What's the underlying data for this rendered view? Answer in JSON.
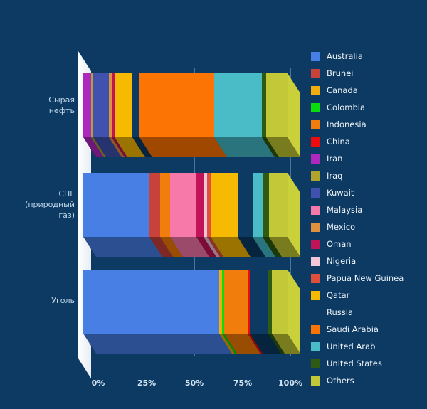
{
  "background_color": "#0d3a63",
  "chart_data": {
    "type": "bar",
    "variant": "3d-stacked-horizontal",
    "title": "",
    "xlabel": "",
    "ylabel": "",
    "unit": "%",
    "xlim": [
      0,
      100
    ],
    "grid": true,
    "legend_position": "right",
    "x_ticks": [
      "0%",
      "25%",
      "50%",
      "75%",
      "100%"
    ],
    "x_tick_values": [
      0,
      25,
      50,
      75,
      100
    ],
    "categories": [
      "Сырая нефть",
      "СПГ (природный газ)",
      "Уголь"
    ],
    "categories_display": [
      "Сырая\nнефть",
      "СПГ\n(природный\nгаз)",
      "Уголь"
    ],
    "series": [
      {
        "name": "Australia",
        "color": "#487fe5",
        "values": [
          0,
          32.5,
          66.5
        ]
      },
      {
        "name": "Brunei",
        "color": "#c7423a",
        "values": [
          0,
          5,
          0
        ]
      },
      {
        "name": "Canada",
        "color": "#f2ac0d",
        "values": [
          0,
          0,
          1.5
        ]
      },
      {
        "name": "Colombia",
        "color": "#0bdc0b",
        "values": [
          0,
          0,
          1
        ]
      },
      {
        "name": "Indonesia",
        "color": "#f07d0c",
        "values": [
          0,
          5,
          11.5
        ]
      },
      {
        "name": "China",
        "color": "#ee0b0b",
        "values": [
          0,
          0,
          1
        ]
      },
      {
        "name": "Iran",
        "color": "#ad28bd",
        "values": [
          4,
          0,
          0
        ]
      },
      {
        "name": "Iraq",
        "color": "#afa42c",
        "values": [
          1,
          0,
          0
        ]
      },
      {
        "name": "Kuwait",
        "color": "#4052ae",
        "values": [
          7.5,
          0,
          0
        ]
      },
      {
        "name": "Malaysia",
        "color": "#f679a9",
        "values": [
          0,
          13,
          0
        ]
      },
      {
        "name": "Mexico",
        "color": "#e0913d",
        "values": [
          1.5,
          0,
          0
        ]
      },
      {
        "name": "Oman",
        "color": "#c11458",
        "values": [
          1.5,
          3.5,
          0
        ]
      },
      {
        "name": "Nigeria",
        "color": "#f2c6d8",
        "values": [
          0,
          1.5,
          0
        ]
      },
      {
        "name": "Papua New Guinea",
        "color": "#df4f3b",
        "values": [
          0,
          2,
          0
        ]
      },
      {
        "name": "Qatar",
        "color": "#f7ba02",
        "values": [
          8.5,
          13,
          0
        ]
      },
      {
        "name": "Russia",
        "color": "#0d3a63",
        "values": [
          3.5,
          7.5,
          9
        ]
      },
      {
        "name": "Saudi Arabia",
        "color": "#fc7404",
        "values": [
          36.5,
          0,
          0
        ]
      },
      {
        "name": "United Arab",
        "color": "#49bcc8",
        "values": [
          23.5,
          5,
          0
        ]
      },
      {
        "name": "United States",
        "color": "#2e5a11",
        "values": [
          2,
          3,
          2
        ]
      },
      {
        "name": "Others",
        "color": "#c2c838",
        "values": [
          10.5,
          9,
          7.5
        ]
      }
    ]
  }
}
